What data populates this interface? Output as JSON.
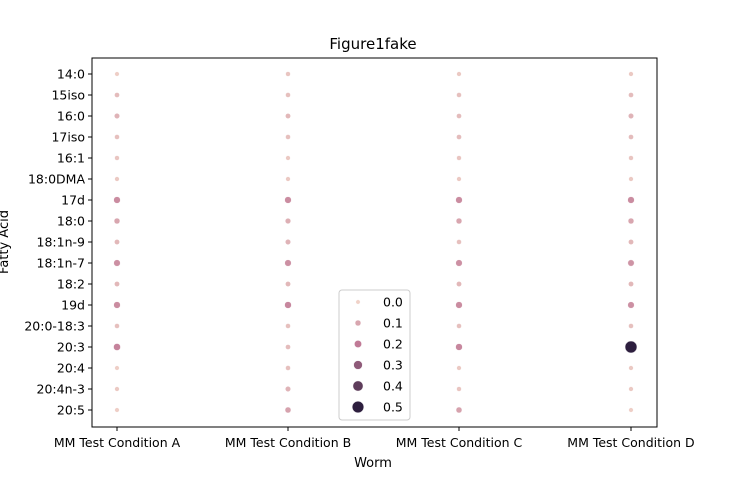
{
  "chart_data": {
    "type": "scatter",
    "title": "Figure1fake",
    "xlabel": "Worm",
    "ylabel": "Fatty Acid",
    "categories_x": [
      "MM Test Condition A",
      "MM Test Condition B",
      "MM Test Condition C",
      "MM Test Condition D"
    ],
    "categories_y": [
      "14:0",
      "15iso",
      "16:0",
      "17iso",
      "16:1",
      "18:0DMA",
      "17d",
      "18:0",
      "18:1n-9",
      "18:1n-7",
      "18:2",
      "19d",
      "20:0-18:3",
      "20:3",
      "20:4",
      "20:4n-3",
      "20:5"
    ],
    "size_value_range": [
      0,
      0.5
    ],
    "color_low": "#f0d2c8",
    "color_high": "#2d1e3e",
    "grid": false,
    "legend_placement": "lower center",
    "legend": {
      "entries": [
        "0.0",
        "0.1",
        "0.2",
        "0.3",
        "0.4",
        "0.5"
      ],
      "values": [
        0.0,
        0.1,
        0.2,
        0.3,
        0.4,
        0.5
      ]
    },
    "series": [
      {
        "x": "MM Test Condition A",
        "values": [
          0.01,
          0.05,
          0.07,
          0.04,
          0.03,
          0.02,
          0.16,
          0.1,
          0.06,
          0.15,
          0.06,
          0.16,
          0.04,
          0.18,
          0.01,
          0.02,
          0.01
        ]
      },
      {
        "x": "MM Test Condition B",
        "values": [
          0.03,
          0.04,
          0.06,
          0.04,
          0.02,
          0.02,
          0.16,
          0.08,
          0.07,
          0.15,
          0.06,
          0.17,
          0.04,
          0.05,
          0.04,
          0.07,
          0.11
        ]
      },
      {
        "x": "MM Test Condition C",
        "values": [
          0.02,
          0.04,
          0.05,
          0.05,
          0.03,
          0.02,
          0.16,
          0.1,
          0.04,
          0.15,
          0.06,
          0.16,
          0.04,
          0.17,
          0.02,
          0.03,
          0.11
        ]
      },
      {
        "x": "MM Test Condition D",
        "values": [
          0.02,
          0.05,
          0.07,
          0.05,
          0.03,
          0.02,
          0.16,
          0.1,
          0.06,
          0.14,
          0.06,
          0.15,
          0.04,
          0.52,
          0.02,
          0.02,
          0.01
        ]
      }
    ]
  }
}
